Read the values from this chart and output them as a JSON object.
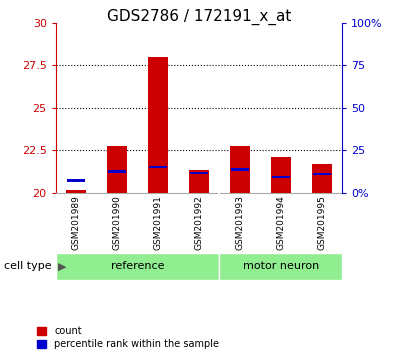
{
  "title": "GDS2786 / 172191_x_at",
  "categories": [
    "GSM201989",
    "GSM201990",
    "GSM201991",
    "GSM201992",
    "GSM201993",
    "GSM201994",
    "GSM201995"
  ],
  "red_values": [
    20.2,
    22.75,
    28.0,
    21.35,
    22.75,
    22.1,
    21.7
  ],
  "blue_values": [
    20.65,
    21.2,
    21.45,
    21.1,
    21.3,
    20.85,
    21.05
  ],
  "blue_heights": [
    0.15,
    0.15,
    0.15,
    0.15,
    0.15,
    0.15,
    0.15
  ],
  "ymin": 20,
  "ymax": 30,
  "yticks": [
    20,
    22.5,
    25,
    27.5,
    30
  ],
  "ytick_labels": [
    "20",
    "22.5",
    "25",
    "27.5",
    "30"
  ],
  "right_yticks_pct": [
    0,
    25,
    50,
    75,
    100
  ],
  "right_ytick_labels": [
    "0%",
    "25",
    "50",
    "75",
    "100%"
  ],
  "group_split": 3.5,
  "ref_label": "reference",
  "mn_label": "motor neuron",
  "group_label": "cell type",
  "legend_red": "count",
  "legend_blue": "percentile rank within the sample",
  "bar_width": 0.5,
  "red_color": "#CC0000",
  "blue_color": "#0000CC",
  "background_color": "#ffffff",
  "left_axis_color": "#CC0000",
  "right_axis_color": "#0000CC",
  "gray_bg": "#C8C8C8",
  "green_bg": "#90EE90",
  "grid_linestyle": ":",
  "grid_linewidth": 0.8,
  "grid_color": "#000000",
  "title_fontsize": 11,
  "tick_fontsize": 8,
  "label_fontsize": 8,
  "cat_fontsize": 6.5
}
